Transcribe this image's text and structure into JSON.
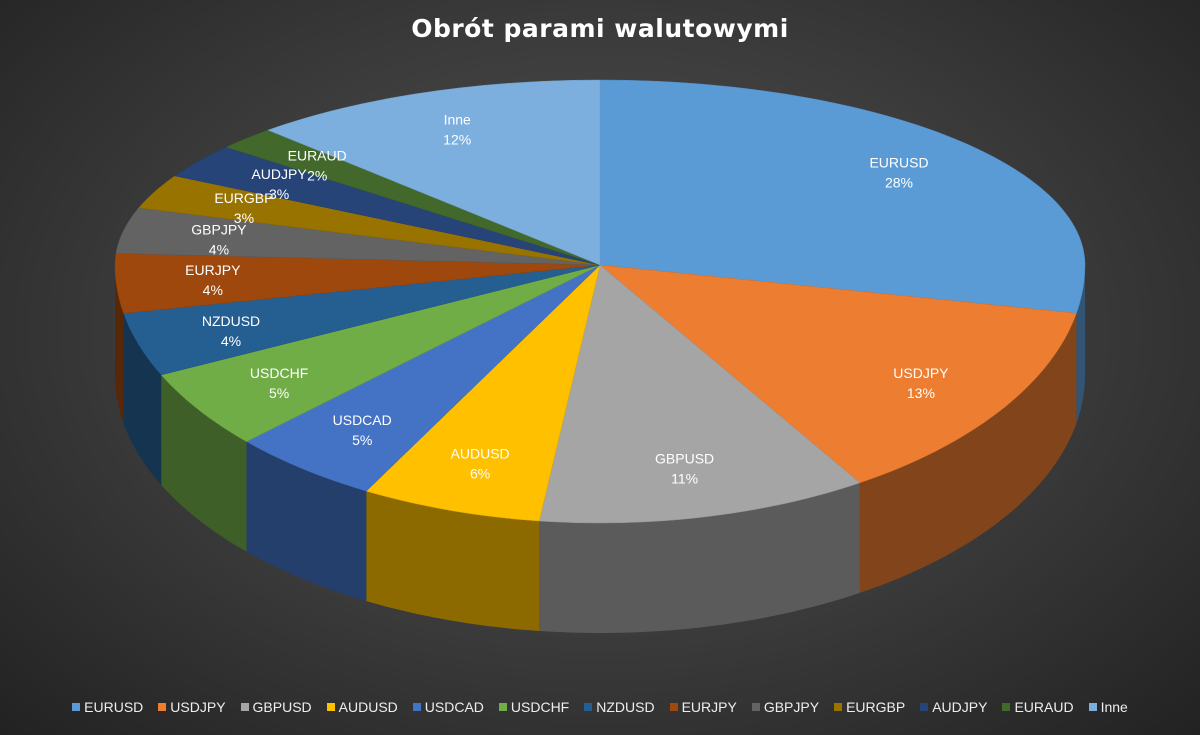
{
  "chart_data": {
    "type": "pie",
    "title": "Obrót parami walutowymi",
    "categories": [
      "EURUSD",
      "USDJPY",
      "GBPUSD",
      "AUDUSD",
      "USDCAD",
      "USDCHF",
      "NZDUSD",
      "EURJPY",
      "GBPJPY",
      "EURGBP",
      "AUDJPY",
      "EURAUD",
      "Inne"
    ],
    "values": [
      28,
      13,
      11,
      6,
      5,
      5,
      4,
      4,
      4,
      3,
      3,
      2,
      12
    ],
    "value_labels": [
      "28%",
      "13%",
      "11%",
      "6%",
      "5%",
      "5%",
      "4%",
      "4%",
      "4%",
      "3%",
      "3%",
      "2%",
      "12%"
    ],
    "colors": [
      "#5b9bd5",
      "#ed7d31",
      "#a5a5a5",
      "#ffc000",
      "#4472c4",
      "#70ad47",
      "#255e91",
      "#9e480e",
      "#636363",
      "#997300",
      "#264478",
      "#43682b",
      "#7cafdd"
    ],
    "legend_position": "bottom",
    "style": "3d"
  }
}
